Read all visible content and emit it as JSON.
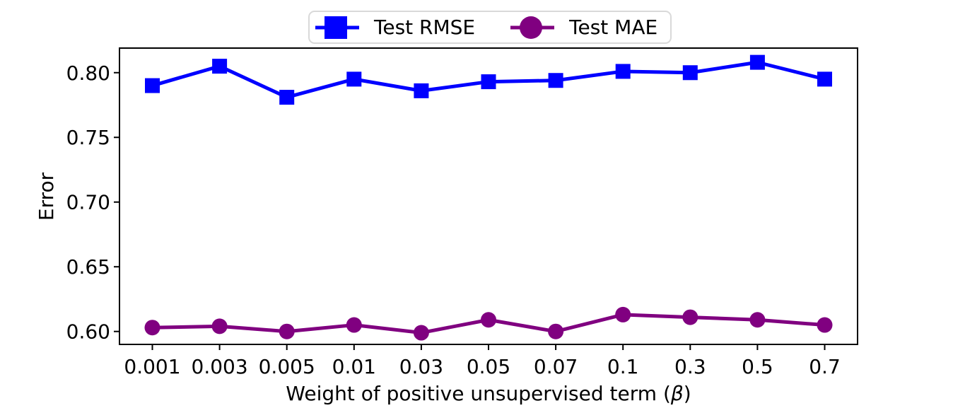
{
  "chart_data": {
    "type": "line",
    "title": "",
    "xlabel": "Weight of positive unsupervised term (β)",
    "xlabel_parts": {
      "prefix": "Weight of positive unsupervised term (",
      "beta": "β",
      "suffix": ")"
    },
    "ylabel": "Error",
    "categories": [
      "0.001",
      "0.003",
      "0.005",
      "0.01",
      "0.03",
      "0.05",
      "0.07",
      "0.1",
      "0.3",
      "0.5",
      "0.7"
    ],
    "series": [
      {
        "name": "Test RMSE",
        "marker": "square",
        "color": "#0000ff",
        "values": [
          0.79,
          0.805,
          0.781,
          0.795,
          0.786,
          0.793,
          0.794,
          0.801,
          0.8,
          0.808,
          0.795
        ]
      },
      {
        "name": "Test MAE",
        "marker": "circle",
        "color": "#800080",
        "values": [
          0.603,
          0.604,
          0.6,
          0.605,
          0.599,
          0.609,
          0.6,
          0.613,
          0.611,
          0.609,
          0.605
        ]
      }
    ],
    "yticks": [
      0.6,
      0.65,
      0.7,
      0.75,
      0.8
    ],
    "ytick_labels": [
      "0.60",
      "0.65",
      "0.70",
      "0.75",
      "0.80"
    ],
    "ylim": [
      0.59,
      0.819
    ],
    "grid": false,
    "legend_position": "upper center",
    "axis_color": "#000000",
    "background_color": "#ffffff"
  }
}
